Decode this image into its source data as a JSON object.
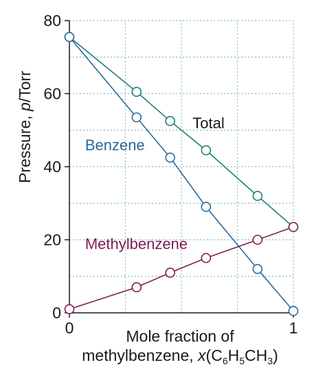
{
  "chart_data": {
    "type": "line",
    "title": "",
    "xlabel_line1": "Mole fraction of",
    "xlabel_line2_prefix": "methylbenzene, ",
    "xlabel_var": "x",
    "xlabel_formula": {
      "open": "(C",
      "sub1": "6",
      "mid1": "H",
      "sub2": "5",
      "mid2": "CH",
      "sub3": "3",
      "close": ")"
    },
    "ylabel_prefix": "Pressure, ",
    "ylabel_var": "p",
    "ylabel_suffix": "/Torr",
    "xlim": [
      0,
      1
    ],
    "ylim": [
      0,
      80
    ],
    "x_ticks": [
      {
        "value": 0,
        "label": "0"
      },
      {
        "value": 1,
        "label": "1"
      }
    ],
    "y_ticks": [
      {
        "value": 0,
        "label": "0"
      },
      {
        "value": 20,
        "label": "20"
      },
      {
        "value": 40,
        "label": "40"
      },
      {
        "value": 60,
        "label": "60"
      },
      {
        "value": 80,
        "label": "80"
      }
    ],
    "x_grid": [
      0.25,
      0.5,
      0.75,
      1
    ],
    "y_grid": [
      10,
      20,
      30,
      40,
      50,
      60,
      70,
      80
    ],
    "series": [
      {
        "name": "Total",
        "color": "#1d7f72",
        "x": [
          0,
          0.3,
          0.45,
          0.61,
          0.84,
          1
        ],
        "y": [
          75.5,
          60.5,
          52.5,
          44.5,
          32,
          23.5
        ]
      },
      {
        "name": "Benzene",
        "color": "#2a6a9c",
        "x": [
          0,
          0.3,
          0.45,
          0.61,
          0.84,
          1
        ],
        "y": [
          75.5,
          53.5,
          42.5,
          29,
          12,
          0.5
        ]
      },
      {
        "name": "Methylbenzene",
        "color": "#7e1d4f",
        "x": [
          0,
          0.3,
          0.45,
          0.61,
          0.84,
          1
        ],
        "y": [
          1,
          7,
          11,
          15,
          20,
          23.5
        ]
      }
    ],
    "series_label_text": {
      "Total": "Total",
      "Benzene": "Benzene",
      "Methylbenzene": "Methylbenzene"
    }
  }
}
